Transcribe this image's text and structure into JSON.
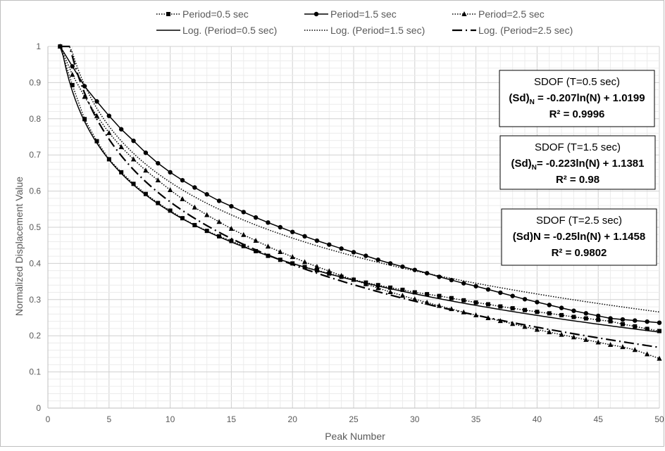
{
  "chart_data": {
    "type": "line",
    "xlabel": "Peak Number",
    "ylabel": "Normalized Displacement Value",
    "xlim": [
      0,
      50
    ],
    "ylim": [
      0,
      1
    ],
    "xticks": [
      0,
      5,
      10,
      15,
      20,
      25,
      30,
      35,
      40,
      45,
      50
    ],
    "yticks": [
      0,
      0.1,
      0.2,
      0.3,
      0.4,
      0.5,
      0.6,
      0.7,
      0.8,
      0.9,
      1
    ],
    "grid": true,
    "legend_position": "top",
    "x": [
      1,
      2,
      3,
      4,
      5,
      6,
      7,
      8,
      9,
      10,
      11,
      12,
      13,
      14,
      15,
      16,
      17,
      18,
      19,
      20,
      21,
      22,
      23,
      24,
      25,
      26,
      27,
      28,
      29,
      30,
      31,
      32,
      33,
      34,
      35,
      36,
      37,
      38,
      39,
      40,
      41,
      42,
      43,
      44,
      45,
      46,
      47,
      48,
      49,
      50
    ],
    "series": [
      {
        "name": "Period=0.5 sec",
        "marker": "square",
        "line": "dotted",
        "values": [
          1.0,
          0.893,
          0.799,
          0.738,
          0.688,
          0.652,
          0.62,
          0.592,
          0.567,
          0.546,
          0.525,
          0.506,
          0.49,
          0.475,
          0.462,
          0.448,
          0.434,
          0.421,
          0.41,
          0.4,
          0.39,
          0.381,
          0.372,
          0.363,
          0.355,
          0.347,
          0.34,
          0.333,
          0.327,
          0.32,
          0.315,
          0.31,
          0.304,
          0.298,
          0.292,
          0.287,
          0.281,
          0.276,
          0.271,
          0.266,
          0.262,
          0.257,
          0.252,
          0.248,
          0.244,
          0.24,
          0.232,
          0.226,
          0.219,
          0.213
        ]
      },
      {
        "name": "Period=1.5 sec",
        "marker": "circle",
        "line": "solid",
        "values": [
          1.0,
          0.945,
          0.89,
          0.848,
          0.808,
          0.771,
          0.739,
          0.706,
          0.677,
          0.652,
          0.63,
          0.61,
          0.591,
          0.573,
          0.558,
          0.542,
          0.527,
          0.513,
          0.5,
          0.487,
          0.475,
          0.463,
          0.452,
          0.441,
          0.431,
          0.421,
          0.41,
          0.4,
          0.391,
          0.382,
          0.373,
          0.363,
          0.354,
          0.345,
          0.337,
          0.328,
          0.319,
          0.31,
          0.301,
          0.293,
          0.285,
          0.277,
          0.269,
          0.262,
          0.255,
          0.248,
          0.245,
          0.242,
          0.239,
          0.236
        ]
      },
      {
        "name": "Period=2.5 sec",
        "marker": "triangle",
        "line": "dotted",
        "values": [
          1.0,
          0.922,
          0.861,
          0.808,
          0.761,
          0.722,
          0.688,
          0.657,
          0.63,
          0.603,
          0.578,
          0.555,
          0.534,
          0.515,
          0.496,
          0.479,
          0.463,
          0.447,
          0.432,
          0.418,
          0.404,
          0.391,
          0.379,
          0.366,
          0.355,
          0.343,
          0.332,
          0.321,
          0.311,
          0.301,
          0.292,
          0.283,
          0.274,
          0.265,
          0.257,
          0.249,
          0.241,
          0.233,
          0.225,
          0.217,
          0.21,
          0.203,
          0.196,
          0.189,
          0.182,
          0.175,
          0.169,
          0.161,
          0.149,
          0.137
        ]
      },
      {
        "name": "Log. (Period=0.5 sec)",
        "fit": "log",
        "line": "solid",
        "a": -0.207,
        "b": 1.0199
      },
      {
        "name": "Log. (Period=1.5 sec)",
        "fit": "log",
        "line": "dotted",
        "a": -0.223,
        "b": 1.1381
      },
      {
        "name": "Log. (Period=2.5 sec)",
        "fit": "log",
        "line": "dashdot",
        "a": -0.25,
        "b": 1.1458
      }
    ],
    "annotations": [
      {
        "title": "SDOF (T=0.5 sec)",
        "eq_prefix": "(Sd)",
        "eq_sub": "N",
        "eq_rest": " = -0.207ln(N) + 1.0199",
        "r2": "R² = 0.9996"
      },
      {
        "title": "SDOF (T=1.5 sec)",
        "eq_prefix": "(Sd)",
        "eq_sub": "N",
        "eq_rest": "= -0.223ln(N) + 1.1381",
        "r2": "R² = 0.98"
      },
      {
        "title": "SDOF (T=2.5 sec)",
        "eq_prefix": "(Sd)N",
        "eq_sub": "",
        "eq_rest": " = -0.25ln(N) + 1.1458",
        "r2": "R² = 0.9802"
      }
    ]
  },
  "colors": {
    "series": "#000000",
    "grid": "#d9d9d9",
    "axis_text": "#595959",
    "frame": "#bfbfbf"
  }
}
